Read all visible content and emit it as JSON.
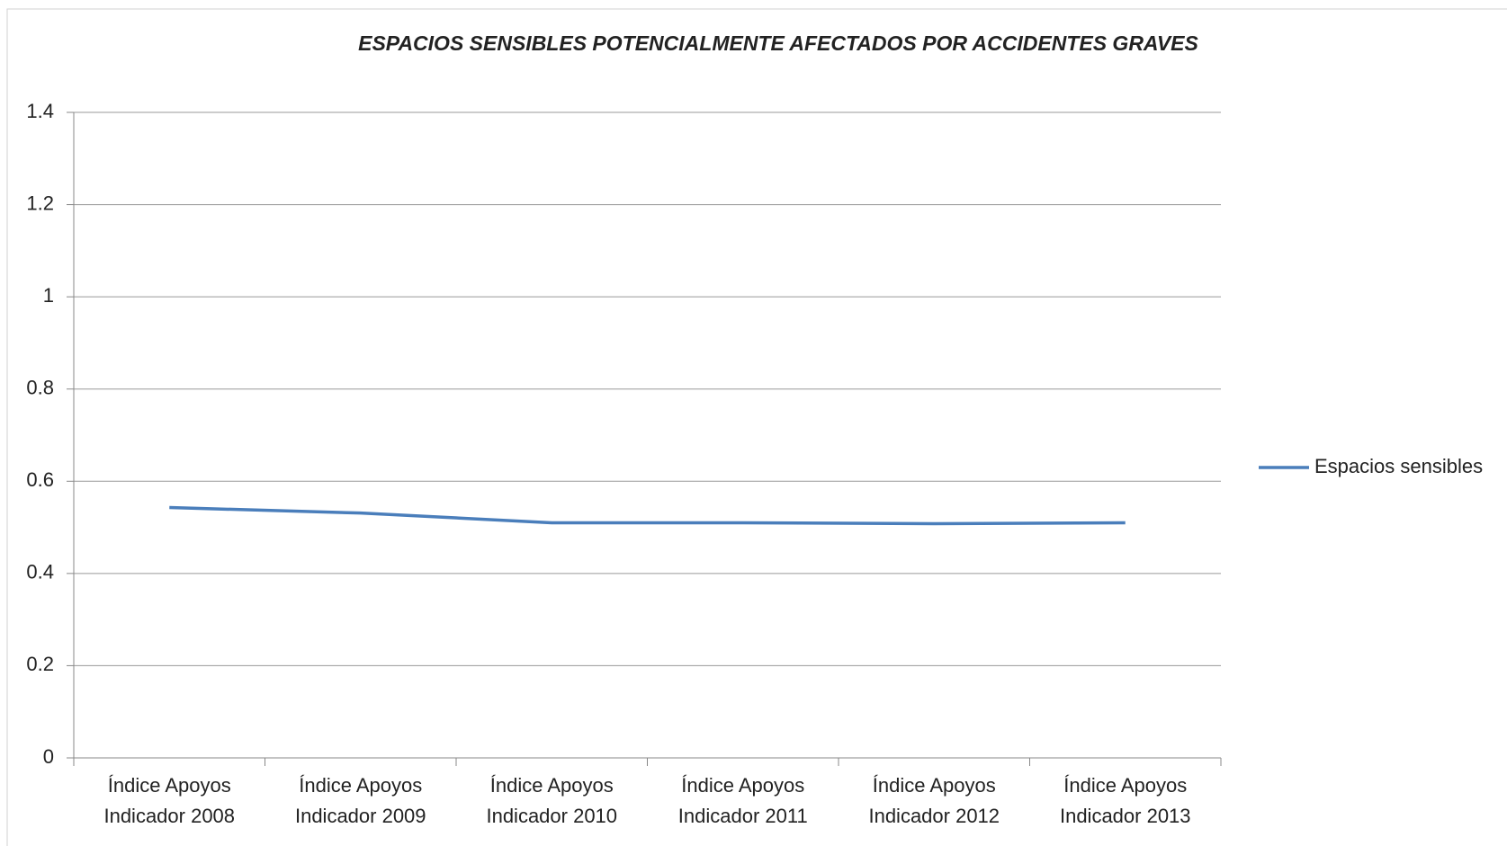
{
  "chart_data": {
    "type": "line",
    "title": "ESPACIOS SENSIBLES POTENCIALMENTE AFECTADOS POR ACCIDENTES GRAVES",
    "categories": [
      "Índice Apoyos Indicador 2008",
      "Índice Apoyos Indicador 2009",
      "Índice Apoyos Indicador 2010",
      "Índice Apoyos Indicador 2011",
      "Índice Apoyos Indicador 2012",
      "Índice Apoyos Indicador 2013"
    ],
    "series": [
      {
        "name": "Espacios sensibles",
        "color": "#4a7ebb",
        "values": [
          0.543,
          0.531,
          0.51,
          0.51,
          0.508,
          0.51
        ]
      }
    ],
    "ylim": [
      0,
      1.4
    ],
    "yticks": [
      0,
      0.2,
      0.4,
      0.6,
      0.8,
      1,
      1.2,
      1.4
    ],
    "grid": true,
    "legend": "right"
  }
}
